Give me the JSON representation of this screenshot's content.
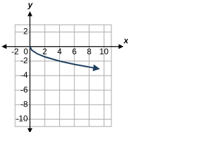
{
  "chart_data": {
    "type": "line",
    "x_label": "x",
    "y_label": "y",
    "x": [
      0,
      0.25,
      1,
      2,
      4,
      6,
      9
    ],
    "series": [
      {
        "color": "#1f3f5f",
        "values": [
          0,
          -0.5,
          -1,
          -1.41,
          -2,
          -2.45,
          -3
        ]
      }
    ],
    "xlim": [
      -2,
      11
    ],
    "ylim": [
      -11,
      3
    ],
    "xticks": [
      -2,
      0,
      2,
      4,
      6,
      8,
      10
    ],
    "yticks": [
      -10,
      -8,
      -6,
      -4,
      -2,
      2
    ],
    "grid": true
  }
}
